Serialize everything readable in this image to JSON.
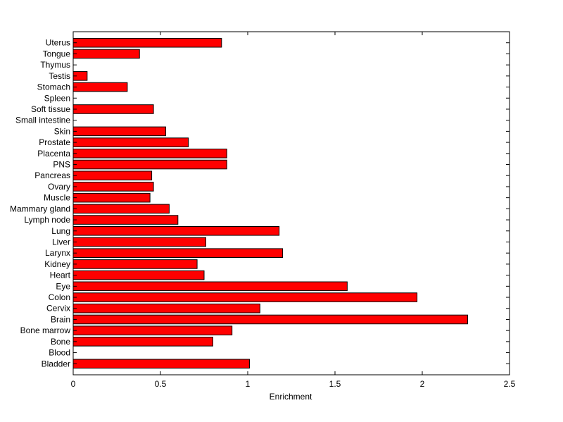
{
  "chart_data": {
    "type": "bar",
    "orientation": "horizontal",
    "title": "",
    "xlabel": "Enrichment",
    "ylabel": "",
    "xlim": [
      0,
      2.5
    ],
    "xticks": [
      0,
      0.5,
      1,
      1.5,
      2,
      2.5
    ],
    "xtick_labels": [
      "0",
      "0.5",
      "1",
      "1.5",
      "2",
      "2.5"
    ],
    "grid": false,
    "bar_color": "#ff0000",
    "edge_color": "#000000",
    "categories": [
      "Bladder",
      "Blood",
      "Bone",
      "Bone marrow",
      "Brain",
      "Cervix",
      "Colon",
      "Eye",
      "Heart",
      "Kidney",
      "Larynx",
      "Liver",
      "Lung",
      "Lymph node",
      "Mammary gland",
      "Muscle",
      "Ovary",
      "Pancreas",
      "PNS",
      "Placenta",
      "Prostate",
      "Skin",
      "Small intestine",
      "Soft tissue",
      "Spleen",
      "Stomach",
      "Testis",
      "Thymus",
      "Tongue",
      "Uterus"
    ],
    "values": [
      1.01,
      0,
      0.8,
      0.91,
      2.26,
      1.07,
      1.97,
      1.57,
      0.75,
      0.71,
      1.2,
      0.76,
      1.18,
      0.6,
      0.55,
      0.44,
      0.46,
      0.45,
      0.88,
      0.88,
      0.66,
      0.53,
      0,
      0.46,
      0,
      0.31,
      0.08,
      0,
      0.38,
      0.85
    ]
  }
}
